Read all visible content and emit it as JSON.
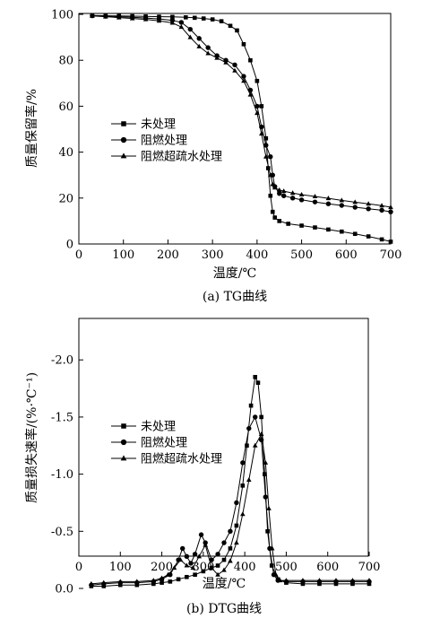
{
  "chart_data": [
    {
      "type": "line",
      "caption": "(a) TG曲线",
      "xlabel": "温度/℃",
      "ylabel": "质量保留率/%",
      "xlim": [
        0,
        700
      ],
      "ylim": [
        0,
        100
      ],
      "xticks": [
        0,
        100,
        200,
        300,
        400,
        500,
        600,
        700
      ],
      "yticks": [
        0,
        20,
        40,
        60,
        80,
        100
      ],
      "grid": false,
      "legend_position": "center-left",
      "series": [
        {
          "name": "未处理",
          "marker": "square",
          "x": [
            30,
            60,
            90,
            120,
            150,
            180,
            210,
            240,
            260,
            280,
            300,
            320,
            340,
            355,
            370,
            385,
            400,
            410,
            420,
            425,
            430,
            435,
            440,
            450,
            470,
            500,
            530,
            560,
            590,
            620,
            650,
            680,
            700
          ],
          "y": [
            99.5,
            99.4,
            99.3,
            99.2,
            99.1,
            99.0,
            98.9,
            98.7,
            98.5,
            98.2,
            97.8,
            97.0,
            95.0,
            93.0,
            87.0,
            80.0,
            71.0,
            60.0,
            46.0,
            33.0,
            21.0,
            14.0,
            11.5,
            10.0,
            8.8,
            8.0,
            7.2,
            6.3,
            5.4,
            4.4,
            3.3,
            2.0,
            1.0
          ]
        },
        {
          "name": "阻燃处理",
          "marker": "circle",
          "x": [
            30,
            60,
            90,
            120,
            150,
            180,
            210,
            230,
            250,
            270,
            290,
            310,
            330,
            350,
            370,
            385,
            400,
            410,
            420,
            430,
            435,
            440,
            450,
            460,
            480,
            500,
            530,
            560,
            590,
            620,
            650,
            680,
            700
          ],
          "y": [
            99.4,
            99.2,
            99.0,
            98.7,
            98.4,
            98.0,
            97.4,
            96.5,
            93.5,
            89.5,
            85.5,
            82.0,
            80.0,
            78.0,
            73.0,
            67.0,
            60.0,
            51.0,
            43.0,
            38.0,
            30.0,
            25.0,
            22.0,
            21.0,
            20.0,
            19.2,
            18.3,
            17.5,
            16.8,
            16.0,
            15.3,
            14.7,
            14.0
          ]
        },
        {
          "name": "阻燃超疏水处理",
          "marker": "triangle",
          "x": [
            30,
            60,
            90,
            120,
            150,
            180,
            210,
            230,
            250,
            270,
            290,
            310,
            330,
            350,
            370,
            385,
            400,
            410,
            420,
            430,
            435,
            440,
            450,
            460,
            480,
            500,
            530,
            560,
            590,
            620,
            650,
            680,
            700
          ],
          "y": [
            99.3,
            99.0,
            98.6,
            98.2,
            97.8,
            97.2,
            96.3,
            94.5,
            90.0,
            86.0,
            83.0,
            81.0,
            79.0,
            75.5,
            71.0,
            65.0,
            57.0,
            48.0,
            38.0,
            30.0,
            26.0,
            24.5,
            23.5,
            23.0,
            22.2,
            21.5,
            20.7,
            19.9,
            19.0,
            18.2,
            17.5,
            16.7,
            16.0
          ]
        }
      ]
    },
    {
      "type": "line",
      "caption": "(b) DTG曲线",
      "xlabel": "温度/℃",
      "ylabel": "质量损失速率/(%·℃⁻¹)",
      "xlim": [
        0,
        700
      ],
      "ylim": [
        -2.3,
        0
      ],
      "xticks": [
        0,
        100,
        200,
        300,
        400,
        500,
        600,
        700
      ],
      "yticks": [
        0,
        -0.5,
        -1.0,
        -1.5,
        -2.0
      ],
      "ytick_labels": [
        "0.0",
        "-0.5",
        "-1.0",
        "-1.5",
        "-2.0"
      ],
      "grid": false,
      "legend_position": "center-left",
      "series": [
        {
          "name": "未处理",
          "marker": "square",
          "x": [
            30,
            60,
            100,
            140,
            180,
            200,
            220,
            240,
            260,
            280,
            300,
            320,
            335,
            350,
            365,
            380,
            395,
            405,
            415,
            425,
            432,
            440,
            448,
            455,
            465,
            480,
            500,
            540,
            580,
            620,
            660,
            700
          ],
          "y": [
            -0.02,
            -0.02,
            -0.03,
            -0.03,
            -0.04,
            -0.05,
            -0.06,
            -0.08,
            -0.1,
            -0.12,
            -0.15,
            -0.18,
            -0.2,
            -0.25,
            -0.35,
            -0.55,
            -0.9,
            -1.25,
            -1.6,
            -1.85,
            -1.8,
            -1.5,
            -1.0,
            -0.5,
            -0.2,
            -0.08,
            -0.05,
            -0.04,
            -0.04,
            -0.04,
            -0.04,
            -0.04
          ]
        },
        {
          "name": "阻燃处理",
          "marker": "circle",
          "x": [
            30,
            60,
            100,
            140,
            180,
            200,
            220,
            240,
            250,
            260,
            270,
            280,
            295,
            305,
            320,
            335,
            350,
            365,
            380,
            395,
            410,
            425,
            440,
            450,
            460,
            470,
            480,
            500,
            540,
            580,
            620,
            660,
            700
          ],
          "y": [
            -0.03,
            -0.04,
            -0.05,
            -0.05,
            -0.06,
            -0.08,
            -0.12,
            -0.25,
            -0.35,
            -0.28,
            -0.22,
            -0.3,
            -0.47,
            -0.4,
            -0.25,
            -0.3,
            -0.4,
            -0.5,
            -0.75,
            -1.1,
            -1.4,
            -1.5,
            -1.3,
            -0.8,
            -0.35,
            -0.12,
            -0.07,
            -0.06,
            -0.06,
            -0.06,
            -0.06,
            -0.06,
            -0.06
          ]
        },
        {
          "name": "阻燃超疏水处理",
          "marker": "triangle",
          "x": [
            30,
            60,
            100,
            140,
            180,
            200,
            215,
            230,
            245,
            260,
            275,
            290,
            305,
            320,
            335,
            350,
            365,
            380,
            395,
            410,
            425,
            440,
            450,
            458,
            466,
            475,
            485,
            500,
            540,
            580,
            620,
            660,
            700
          ],
          "y": [
            -0.04,
            -0.05,
            -0.06,
            -0.06,
            -0.07,
            -0.09,
            -0.12,
            -0.18,
            -0.25,
            -0.2,
            -0.18,
            -0.28,
            -0.38,
            -0.18,
            -0.12,
            -0.16,
            -0.24,
            -0.4,
            -0.65,
            -0.95,
            -1.25,
            -1.35,
            -1.1,
            -0.7,
            -0.35,
            -0.12,
            -0.07,
            -0.07,
            -0.07,
            -0.07,
            -0.07,
            -0.07,
            -0.07
          ]
        }
      ]
    }
  ]
}
